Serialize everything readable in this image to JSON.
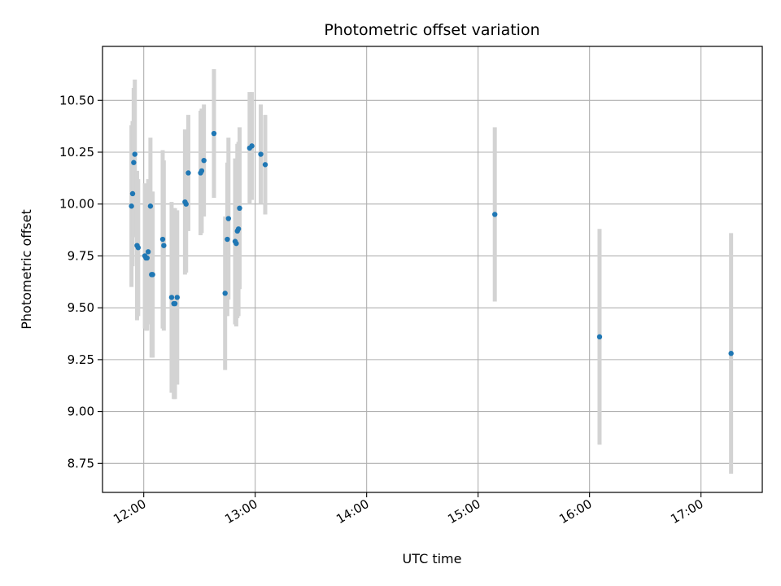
{
  "chart_data": {
    "type": "scatter",
    "title": "Photometric offset variation",
    "xlabel": "UTC time",
    "ylabel": "Photometric offset",
    "x_unit": "UTC hours (decimal)",
    "xlim": [
      11.63,
      17.55
    ],
    "ylim": [
      8.61,
      10.76
    ],
    "x_ticks": [
      12,
      13,
      14,
      15,
      16,
      17
    ],
    "x_tick_labels": [
      "12:00",
      "13:00",
      "14:00",
      "15:00",
      "16:00",
      "17:00"
    ],
    "y_ticks": [
      8.75,
      9.0,
      9.25,
      9.5,
      9.75,
      10.0,
      10.25,
      10.5
    ],
    "y_tick_labels": [
      "8.75",
      "9.00",
      "9.25",
      "9.50",
      "9.75",
      "10.00",
      "10.25",
      "10.50"
    ],
    "grid": true,
    "point_color": "#1f77b4",
    "errorbar_color": "#d3d3d3",
    "series": [
      {
        "x": [
          11.89,
          11.9,
          11.91,
          11.92,
          11.94,
          11.95,
          12.01,
          12.02,
          12.03,
          12.04,
          12.06,
          12.07,
          12.08,
          12.17,
          12.18,
          12.25,
          12.27,
          12.28,
          12.3,
          12.37,
          12.38,
          12.4,
          12.51,
          12.52,
          12.54,
          12.63,
          12.73,
          12.75,
          12.76,
          12.82,
          12.83,
          12.84,
          12.85,
          12.86,
          12.95,
          12.97,
          13.05,
          13.09,
          15.15,
          16.09,
          17.27
        ],
        "y": [
          9.99,
          10.05,
          10.2,
          10.24,
          9.8,
          9.79,
          9.75,
          9.74,
          9.74,
          9.77,
          9.99,
          9.66,
          9.66,
          9.83,
          9.8,
          9.55,
          9.52,
          9.52,
          9.55,
          10.01,
          10.0,
          10.15,
          10.15,
          10.16,
          10.21,
          10.34,
          9.57,
          9.83,
          9.93,
          9.82,
          9.81,
          9.87,
          9.88,
          9.98,
          10.27,
          10.28,
          10.24,
          10.19,
          9.95,
          9.36,
          9.28
        ],
        "err": [
          0.39,
          0.35,
          0.36,
          0.36,
          0.36,
          0.33,
          0.35,
          0.35,
          0.35,
          0.35,
          0.33,
          0.4,
          0.4,
          0.43,
          0.41,
          0.46,
          0.46,
          0.46,
          0.42,
          0.35,
          0.33,
          0.28,
          0.3,
          0.3,
          0.27,
          0.31,
          0.37,
          0.37,
          0.39,
          0.4,
          0.4,
          0.42,
          0.42,
          0.39,
          0.27,
          0.26,
          0.24,
          0.24,
          0.42,
          0.52,
          0.58
        ]
      }
    ]
  }
}
